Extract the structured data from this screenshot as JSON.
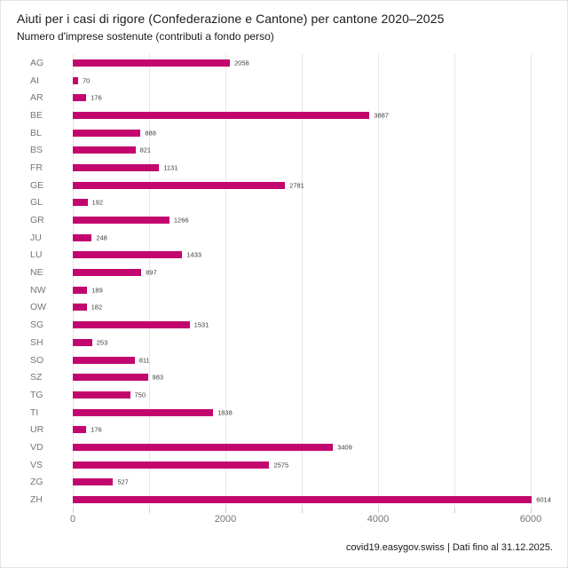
{
  "header": {
    "title": "Aiuti per i casi di rigore (Confederazione e Cantone) per cantone 2020–2025",
    "subtitle": "Numero d'imprese sostenute (contributi a fondo perso)"
  },
  "footer": {
    "source_line": "covid19.easygov.swiss | Dati fino al 31.12.2025."
  },
  "chart_data": {
    "type": "bar",
    "orientation": "horizontal",
    "title": "Aiuti per i casi di rigore (Confederazione e Cantone) per cantone 2020–2025",
    "subtitle": "Numero d'imprese sostenute (contributi a fondo perso)",
    "categories": [
      "AG",
      "AI",
      "AR",
      "BE",
      "BL",
      "BS",
      "FR",
      "GE",
      "GL",
      "GR",
      "JU",
      "LU",
      "NE",
      "NW",
      "OW",
      "SG",
      "SH",
      "SO",
      "SZ",
      "TG",
      "TI",
      "UR",
      "VD",
      "VS",
      "ZG",
      "ZH"
    ],
    "values": [
      2058,
      70,
      176,
      3887,
      888,
      821,
      1131,
      2781,
      192,
      1266,
      248,
      1433,
      897,
      189,
      182,
      1531,
      253,
      811,
      983,
      750,
      1838,
      176,
      3409,
      2575,
      527,
      6014
    ],
    "xlabel": "",
    "ylabel": "",
    "xlim": [
      0,
      6200
    ],
    "x_major_ticks": [
      0,
      2000,
      4000,
      6000
    ],
    "x_minor_gridline_step": 1000,
    "grid": true,
    "bar_color": "#c2066e",
    "gridline_color": "#e6e6e6",
    "label_color": "#757575",
    "value_label_color": "#3d3d3d"
  }
}
